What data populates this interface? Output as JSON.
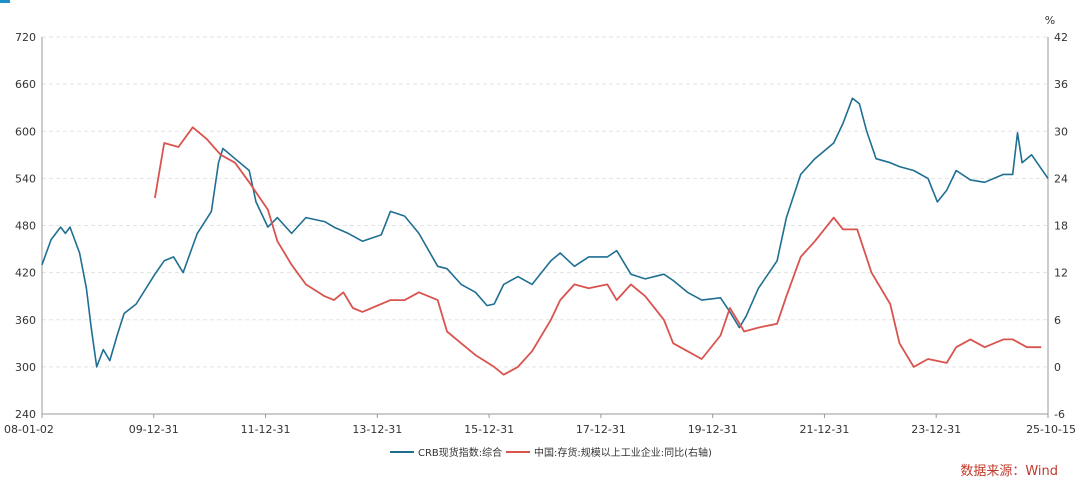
{
  "colors": {
    "crb": "#1f6f93",
    "inventory": "#d9534f",
    "source": "#c0392b"
  },
  "source_label": "数据来源：Wind",
  "chart_data": {
    "type": "line",
    "x_range": [
      "2008-01-02",
      "2025-10-15"
    ],
    "x_tick_labels": [
      "08-01-02",
      "09-12-31",
      "11-12-31",
      "13-12-31",
      "15-12-31",
      "17-12-31",
      "19-12-31",
      "21-12-31",
      "23-12-31",
      "25-10-15"
    ],
    "y_left": {
      "min": 240,
      "max": 720,
      "ticks": [
        240,
        300,
        360,
        420,
        480,
        540,
        600,
        660,
        720
      ]
    },
    "y_right": {
      "min": -6,
      "max": 42,
      "ticks": [
        -6,
        0,
        6,
        12,
        18,
        24,
        30,
        36,
        42
      ],
      "unit": "%"
    },
    "grid": true,
    "legend_position": "bottom-center",
    "series": [
      {
        "name": "CRB现货指数:综合",
        "axis": "left",
        "points": [
          [
            "2008-01-02",
            430
          ],
          [
            "2008-03-01",
            462
          ],
          [
            "2008-05-01",
            478
          ],
          [
            "2008-06-01",
            470
          ],
          [
            "2008-07-01",
            478
          ],
          [
            "2008-09-01",
            445
          ],
          [
            "2008-10-15",
            400
          ],
          [
            "2008-11-15",
            350
          ],
          [
            "2008-12-20",
            300
          ],
          [
            "2009-02-01",
            322
          ],
          [
            "2009-03-15",
            308
          ],
          [
            "2009-05-01",
            340
          ],
          [
            "2009-06-15",
            368
          ],
          [
            "2009-09-01",
            380
          ],
          [
            "2009-12-31",
            418
          ],
          [
            "2010-03-01",
            435
          ],
          [
            "2010-05-01",
            440
          ],
          [
            "2010-07-01",
            420
          ],
          [
            "2010-10-01",
            470
          ],
          [
            "2010-12-31",
            498
          ],
          [
            "2011-02-15",
            560
          ],
          [
            "2011-03-15",
            578
          ],
          [
            "2011-06-01",
            565
          ],
          [
            "2011-09-01",
            550
          ],
          [
            "2011-10-15",
            510
          ],
          [
            "2011-12-31",
            478
          ],
          [
            "2012-03-01",
            490
          ],
          [
            "2012-06-01",
            470
          ],
          [
            "2012-09-01",
            490
          ],
          [
            "2012-12-31",
            485
          ],
          [
            "2013-03-01",
            478
          ],
          [
            "2013-06-01",
            470
          ],
          [
            "2013-09-01",
            460
          ],
          [
            "2013-12-31",
            468
          ],
          [
            "2014-03-01",
            498
          ],
          [
            "2014-06-01",
            492
          ],
          [
            "2014-09-01",
            470
          ],
          [
            "2014-12-31",
            428
          ],
          [
            "2015-03-01",
            425
          ],
          [
            "2015-06-01",
            405
          ],
          [
            "2015-09-01",
            395
          ],
          [
            "2015-11-15",
            378
          ],
          [
            "2015-12-31",
            380
          ],
          [
            "2016-03-01",
            405
          ],
          [
            "2016-06-01",
            415
          ],
          [
            "2016-09-01",
            405
          ],
          [
            "2016-12-31",
            435
          ],
          [
            "2017-03-01",
            445
          ],
          [
            "2017-06-01",
            428
          ],
          [
            "2017-09-01",
            440
          ],
          [
            "2017-12-31",
            440
          ],
          [
            "2018-03-01",
            448
          ],
          [
            "2018-06-01",
            418
          ],
          [
            "2018-09-01",
            412
          ],
          [
            "2018-12-31",
            418
          ],
          [
            "2019-03-01",
            410
          ],
          [
            "2019-06-01",
            395
          ],
          [
            "2019-09-01",
            385
          ],
          [
            "2019-12-31",
            388
          ],
          [
            "2020-03-01",
            370
          ],
          [
            "2020-05-01",
            350
          ],
          [
            "2020-06-15",
            365
          ],
          [
            "2020-09-01",
            400
          ],
          [
            "2020-12-31",
            435
          ],
          [
            "2021-03-01",
            490
          ],
          [
            "2021-06-01",
            545
          ],
          [
            "2021-09-01",
            565
          ],
          [
            "2021-12-31",
            585
          ],
          [
            "2022-03-01",
            610
          ],
          [
            "2022-05-01",
            642
          ],
          [
            "2022-06-15",
            635
          ],
          [
            "2022-08-01",
            600
          ],
          [
            "2022-10-01",
            565
          ],
          [
            "2022-12-31",
            560
          ],
          [
            "2023-03-01",
            555
          ],
          [
            "2023-06-01",
            550
          ],
          [
            "2023-09-01",
            540
          ],
          [
            "2023-11-01",
            510
          ],
          [
            "2023-12-31",
            525
          ],
          [
            "2024-03-01",
            550
          ],
          [
            "2024-06-01",
            538
          ],
          [
            "2024-09-01",
            535
          ],
          [
            "2024-12-31",
            545
          ],
          [
            "2025-03-01",
            545
          ],
          [
            "2025-04-01",
            598
          ],
          [
            "2025-05-01",
            560
          ],
          [
            "2025-07-01",
            570
          ],
          [
            "2025-10-15",
            540
          ]
        ]
      },
      {
        "name": "中国:存货:规模以上工业企业:同比(右轴)",
        "axis": "right",
        "points": [
          [
            "2009-12-31",
            21.5
          ],
          [
            "2010-03-01",
            28.5
          ],
          [
            "2010-06-01",
            28
          ],
          [
            "2010-09-01",
            30.5
          ],
          [
            "2010-12-01",
            29
          ],
          [
            "2011-03-01",
            27
          ],
          [
            "2011-06-01",
            26
          ],
          [
            "2011-09-01",
            23.5
          ],
          [
            "2011-12-31",
            20
          ],
          [
            "2012-03-01",
            16
          ],
          [
            "2012-06-01",
            13
          ],
          [
            "2012-09-01",
            10.5
          ],
          [
            "2012-12-31",
            9
          ],
          [
            "2013-03-01",
            8.5
          ],
          [
            "2013-05-01",
            9.5
          ],
          [
            "2013-07-01",
            7.5
          ],
          [
            "2013-09-01",
            7
          ],
          [
            "2013-12-31",
            8
          ],
          [
            "2014-03-01",
            8.5
          ],
          [
            "2014-06-01",
            8.5
          ],
          [
            "2014-09-01",
            9.5
          ],
          [
            "2014-12-31",
            8.5
          ],
          [
            "2015-03-01",
            4.5
          ],
          [
            "2015-06-01",
            3
          ],
          [
            "2015-09-01",
            1.5
          ],
          [
            "2015-12-31",
            0
          ],
          [
            "2016-03-01",
            -1
          ],
          [
            "2016-06-01",
            0
          ],
          [
            "2016-09-01",
            2
          ],
          [
            "2016-12-31",
            6
          ],
          [
            "2017-03-01",
            8.5
          ],
          [
            "2017-06-01",
            10.5
          ],
          [
            "2017-09-01",
            10
          ],
          [
            "2017-12-31",
            10.5
          ],
          [
            "2018-03-01",
            8.5
          ],
          [
            "2018-06-01",
            10.5
          ],
          [
            "2018-09-01",
            9
          ],
          [
            "2018-12-31",
            6
          ],
          [
            "2019-03-01",
            3
          ],
          [
            "2019-06-01",
            2
          ],
          [
            "2019-09-01",
            1
          ],
          [
            "2019-12-31",
            4
          ],
          [
            "2020-03-01",
            7.5
          ],
          [
            "2020-06-01",
            4.5
          ],
          [
            "2020-09-01",
            5
          ],
          [
            "2020-12-31",
            5.5
          ],
          [
            "2021-03-01",
            9
          ],
          [
            "2021-06-01",
            14
          ],
          [
            "2021-09-01",
            16
          ],
          [
            "2021-12-31",
            19
          ],
          [
            "2022-03-01",
            17.5
          ],
          [
            "2022-06-01",
            17.5
          ],
          [
            "2022-09-01",
            12
          ],
          [
            "2022-12-31",
            8
          ],
          [
            "2023-03-01",
            3
          ],
          [
            "2023-06-01",
            0
          ],
          [
            "2023-09-01",
            1
          ],
          [
            "2023-12-31",
            0.5
          ],
          [
            "2024-03-01",
            2.5
          ],
          [
            "2024-06-01",
            3.5
          ],
          [
            "2024-09-01",
            2.5
          ],
          [
            "2024-12-31",
            3.5
          ],
          [
            "2025-03-01",
            3.5
          ],
          [
            "2025-06-01",
            2.5
          ],
          [
            "2025-09-01",
            2.5
          ]
        ]
      }
    ]
  }
}
